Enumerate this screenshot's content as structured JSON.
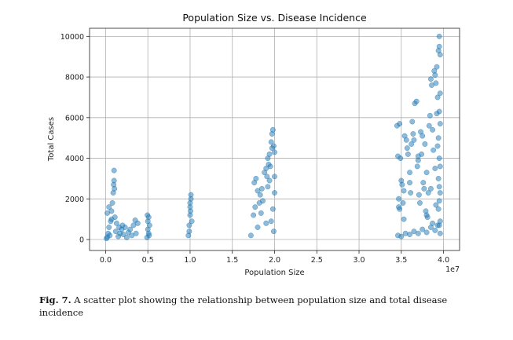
{
  "chart_data": {
    "type": "scatter",
    "title": "Population Size vs. Disease Incidence",
    "xlabel": "Population Size",
    "ylabel": "Total Cases",
    "x_scale_label": "1e7",
    "xlim": [
      -1900000,
      41900000
    ],
    "ylim": [
      -540,
      10400
    ],
    "xticks": [
      0,
      5000000,
      10000000,
      15000000,
      20000000,
      25000000,
      30000000,
      35000000,
      40000000
    ],
    "xtick_labels": [
      "0.0",
      "0.5",
      "1.0",
      "1.5",
      "2.0",
      "2.5",
      "3.0",
      "3.5",
      "4.0"
    ],
    "yticks": [
      0,
      2000,
      4000,
      6000,
      8000,
      10000
    ],
    "ytick_labels": [
      "0",
      "2000",
      "4000",
      "6000",
      "8000",
      "10000"
    ],
    "grid": true,
    "marker_color": "#1f77b4",
    "marker_alpha": 0.5,
    "series": [
      {
        "points": [
          [
            100000,
            50
          ],
          [
            200000,
            120
          ],
          [
            300000,
            300
          ],
          [
            400000,
            600
          ],
          [
            500000,
            200
          ],
          [
            600000,
            900
          ],
          [
            700000,
            1400
          ],
          [
            800000,
            1800
          ],
          [
            900000,
            2300
          ],
          [
            950000,
            2700
          ],
          [
            1000000,
            3400
          ],
          [
            1000000,
            2900
          ],
          [
            1050000,
            2500
          ],
          [
            1100000,
            1100
          ],
          [
            1200000,
            400
          ],
          [
            1300000,
            800
          ],
          [
            1500000,
            150
          ],
          [
            1700000,
            300
          ],
          [
            1900000,
            500
          ],
          [
            2100000,
            250
          ],
          [
            2300000,
            600
          ],
          [
            2500000,
            100
          ],
          [
            2700000,
            350
          ],
          [
            2900000,
            500
          ],
          [
            3100000,
            200
          ],
          [
            3300000,
            700
          ],
          [
            3500000,
            950
          ],
          [
            3600000,
            300
          ],
          [
            3800000,
            800
          ],
          [
            200000,
            1300
          ],
          [
            400000,
            1600
          ],
          [
            700000,
            1000
          ],
          [
            1600000,
            600
          ],
          [
            2000000,
            700
          ],
          [
            4900000,
            100
          ],
          [
            5000000,
            500
          ],
          [
            5000000,
            900
          ],
          [
            5100000,
            1100
          ],
          [
            5100000,
            300
          ],
          [
            5200000,
            700
          ],
          [
            4950000,
            1200
          ],
          [
            5150000,
            200
          ],
          [
            9800000,
            200
          ],
          [
            9900000,
            700
          ],
          [
            10000000,
            1200
          ],
          [
            10000000,
            1600
          ],
          [
            10100000,
            2000
          ],
          [
            10100000,
            2200
          ],
          [
            10000000,
            1800
          ],
          [
            9900000,
            400
          ],
          [
            10200000,
            900
          ],
          [
            10050000,
            1400
          ],
          [
            17200000,
            200
          ],
          [
            17500000,
            1200
          ],
          [
            17600000,
            2800
          ],
          [
            17800000,
            3000
          ],
          [
            18000000,
            2400
          ],
          [
            18200000,
            1800
          ],
          [
            18400000,
            1300
          ],
          [
            18500000,
            2500
          ],
          [
            18800000,
            3300
          ],
          [
            19000000,
            3500
          ],
          [
            19200000,
            4000
          ],
          [
            19300000,
            3700
          ],
          [
            19400000,
            4200
          ],
          [
            19500000,
            3600
          ],
          [
            19600000,
            4800
          ],
          [
            19700000,
            5200
          ],
          [
            19800000,
            5400
          ],
          [
            19900000,
            4600
          ],
          [
            20000000,
            3100
          ],
          [
            20000000,
            2300
          ],
          [
            19800000,
            1500
          ],
          [
            19600000,
            900
          ],
          [
            19400000,
            2900
          ],
          [
            19200000,
            2600
          ],
          [
            18000000,
            600
          ],
          [
            18600000,
            1900
          ],
          [
            19000000,
            800
          ],
          [
            19900000,
            400
          ],
          [
            17700000,
            1600
          ],
          [
            18300000,
            2200
          ],
          [
            19100000,
            3100
          ],
          [
            19700000,
            4500
          ],
          [
            20000000,
            4300
          ],
          [
            34500000,
            5600
          ],
          [
            34800000,
            5700
          ],
          [
            34600000,
            4100
          ],
          [
            34900000,
            4000
          ],
          [
            35000000,
            2900
          ],
          [
            35100000,
            2700
          ],
          [
            34700000,
            2000
          ],
          [
            34700000,
            1600
          ],
          [
            34800000,
            1500
          ],
          [
            35200000,
            1800
          ],
          [
            35300000,
            2400
          ],
          [
            35400000,
            5100
          ],
          [
            35600000,
            4900
          ],
          [
            35700000,
            4500
          ],
          [
            35800000,
            4200
          ],
          [
            36000000,
            2800
          ],
          [
            36100000,
            2300
          ],
          [
            36200000,
            4700
          ],
          [
            36300000,
            5800
          ],
          [
            36400000,
            5200
          ],
          [
            36500000,
            4900
          ],
          [
            36600000,
            6700
          ],
          [
            36800000,
            6800
          ],
          [
            36900000,
            3600
          ],
          [
            37000000,
            3900
          ],
          [
            37100000,
            2200
          ],
          [
            37200000,
            1800
          ],
          [
            37300000,
            5300
          ],
          [
            37400000,
            4200
          ],
          [
            37500000,
            5100
          ],
          [
            37600000,
            2800
          ],
          [
            37700000,
            2500
          ],
          [
            37800000,
            4700
          ],
          [
            37900000,
            1400
          ],
          [
            38000000,
            1200
          ],
          [
            38100000,
            1100
          ],
          [
            38200000,
            2300
          ],
          [
            38300000,
            5600
          ],
          [
            38400000,
            6100
          ],
          [
            38500000,
            7900
          ],
          [
            38600000,
            7600
          ],
          [
            38700000,
            5400
          ],
          [
            38800000,
            4400
          ],
          [
            38900000,
            8300
          ],
          [
            39000000,
            8100
          ],
          [
            39100000,
            7700
          ],
          [
            39200000,
            8500
          ],
          [
            39300000,
            7000
          ],
          [
            39400000,
            9300
          ],
          [
            39500000,
            9500
          ],
          [
            39500000,
            10000
          ],
          [
            39600000,
            9100
          ],
          [
            39600000,
            7200
          ],
          [
            39500000,
            6300
          ],
          [
            39600000,
            5700
          ],
          [
            39400000,
            5000
          ],
          [
            39300000,
            4600
          ],
          [
            39500000,
            4000
          ],
          [
            39600000,
            3600
          ],
          [
            39400000,
            3000
          ],
          [
            39500000,
            2600
          ],
          [
            39600000,
            2300
          ],
          [
            39500000,
            1900
          ],
          [
            39400000,
            1500
          ],
          [
            39600000,
            900
          ],
          [
            39300000,
            700
          ],
          [
            38000000,
            3300
          ],
          [
            37000000,
            4100
          ],
          [
            36000000,
            3300
          ],
          [
            35300000,
            1000
          ],
          [
            38500000,
            2500
          ],
          [
            39100000,
            1700
          ],
          [
            38700000,
            800
          ],
          [
            39000000,
            3500
          ],
          [
            39200000,
            6200
          ],
          [
            34600000,
            200
          ],
          [
            35000000,
            150
          ],
          [
            35500000,
            300
          ],
          [
            36000000,
            250
          ],
          [
            36500000,
            400
          ],
          [
            37000000,
            300
          ],
          [
            37500000,
            500
          ],
          [
            38000000,
            350
          ],
          [
            38500000,
            600
          ],
          [
            39000000,
            450
          ],
          [
            39500000,
            700
          ],
          [
            39600000,
            300
          ]
        ]
      }
    ]
  },
  "caption": {
    "label": "Fig. 7.",
    "text": " A scatter plot showing the relationship between population size and total disease incidence"
  }
}
